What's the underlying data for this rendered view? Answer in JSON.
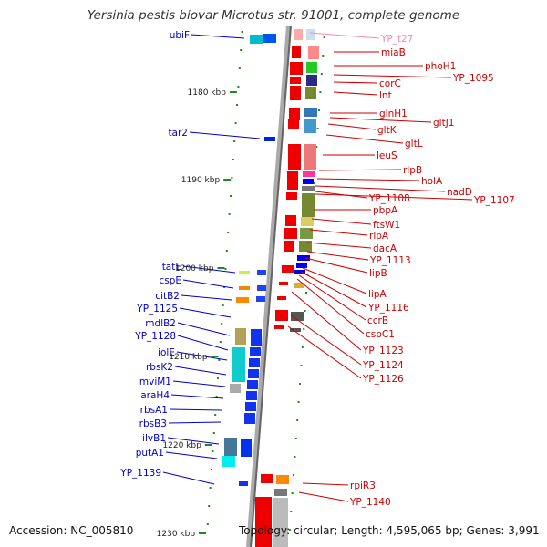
{
  "title": "Yersinia pestis biovar Microtus str. 91001, complete genome",
  "footer": {
    "accession": "Accession: NC_005810",
    "topology": "Topology: circular; Length: 4,595,065 bp; Genes: 3,991"
  },
  "ticks": [
    "1180 kbp",
    "1190 kbp",
    "1200 kbp",
    "1210 kbp",
    "1220 kbp",
    "1230 kbp"
  ],
  "left_genes": [
    "ubiF",
    "tar2",
    "tatE",
    "cspE",
    "citB2",
    "YP_1125",
    "mdlB2",
    "YP_1128",
    "iolE",
    "rbsK2",
    "mviM1",
    "araH4",
    "rbsA1",
    "rbsB3",
    "ilvB1",
    "putA1",
    "YP_1139"
  ],
  "right_genes": [
    "YP_t27",
    "miaB",
    "phoH1",
    "YP_1095",
    "corC",
    "lnt",
    "glnH1",
    "gltJ1",
    "gltK",
    "gltL",
    "leuS",
    "rlpB",
    "holA",
    "nadD",
    "YP_1108",
    "YP_1107",
    "pbpA",
    "ftsW1",
    "rlpA",
    "dacA",
    "YP_1113",
    "lipB",
    "lipA",
    "YP_1116",
    "ccrB",
    "cspC1",
    "YP_1123",
    "YP_1124",
    "YP_1126",
    "rpiR3",
    "YP_1140"
  ],
  "colors": {
    "forward_label": "#0000cc",
    "reverse_label": "#cc0000",
    "trna_label": "#ff88aa",
    "backbone": "#888888",
    "tick": "#228822"
  }
}
